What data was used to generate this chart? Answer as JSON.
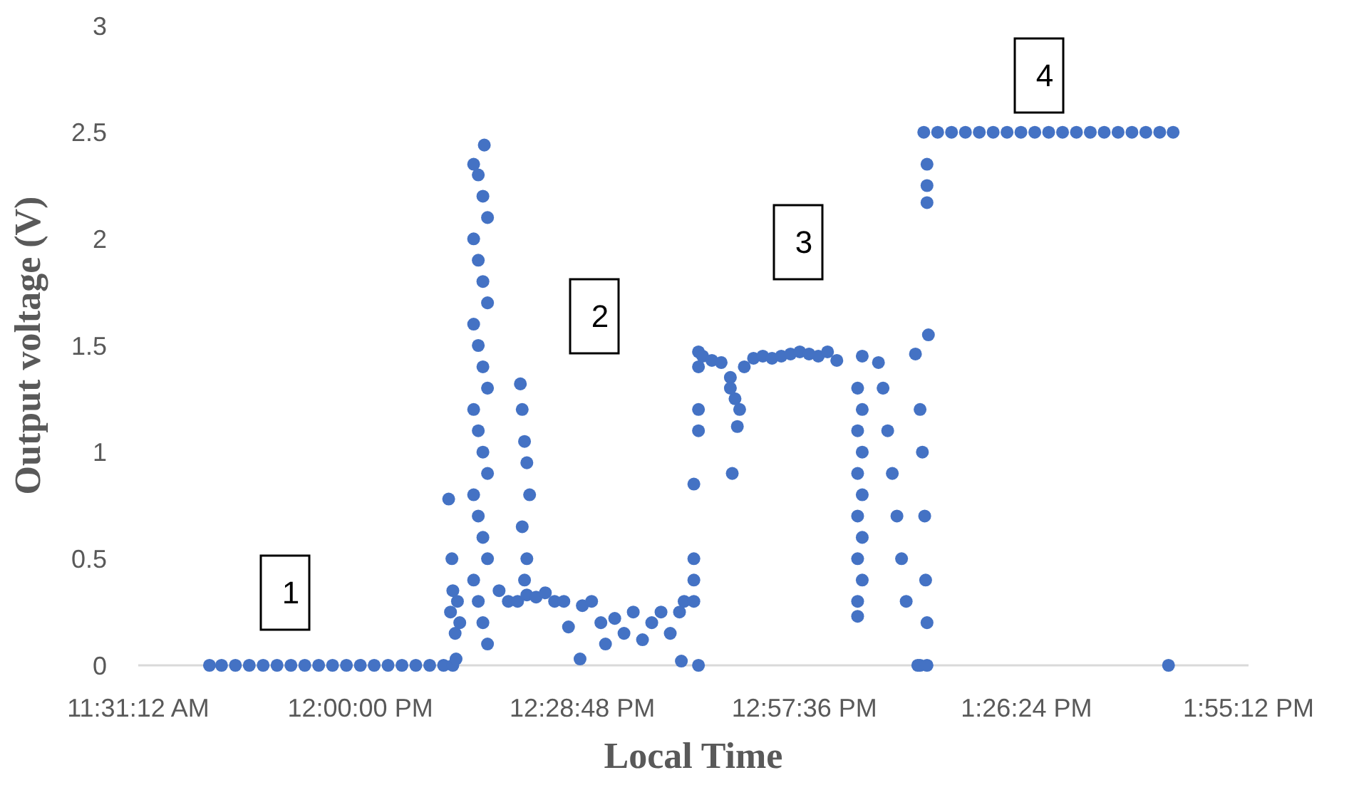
{
  "chart_data": {
    "type": "scatter",
    "xlabel": "Local Time",
    "ylabel": "Output voltage (V)",
    "xlim": [
      11.52,
      13.92
    ],
    "xticks": [
      {
        "value": 11.52,
        "label": "11:31:12 AM"
      },
      {
        "value": 12.0,
        "label": "12:00:00 PM"
      },
      {
        "value": 12.48,
        "label": "12:28:48 PM"
      },
      {
        "value": 12.96,
        "label": "12:57:36 PM"
      },
      {
        "value": 13.44,
        "label": "1:26:24 PM"
      },
      {
        "value": 13.92,
        "label": "1:55:12 PM"
      }
    ],
    "ylim": [
      0,
      3
    ],
    "yticks": [
      0,
      0.5,
      1,
      1.5,
      2,
      2.5,
      3
    ],
    "grid": false,
    "marker": "circle",
    "annotations": [
      "1",
      "2",
      "3",
      "4"
    ],
    "series": [
      {
        "color": "#4472c4",
        "x": [
          11.674,
          11.7,
          11.73,
          11.76,
          11.79,
          11.82,
          11.85,
          11.88,
          11.91,
          11.94,
          11.97,
          12.0,
          12.03,
          12.06,
          12.09,
          12.12,
          12.15,
          12.18,
          12.2,
          12.207,
          12.191,
          12.195,
          12.198,
          12.2,
          12.205,
          12.21,
          12.215,
          12.245,
          12.255,
          12.265,
          12.275,
          12.245,
          12.255,
          12.265,
          12.275,
          12.245,
          12.255,
          12.265,
          12.275,
          12.245,
          12.255,
          12.265,
          12.275,
          12.245,
          12.255,
          12.265,
          12.275,
          12.245,
          12.255,
          12.265,
          12.275,
          12.268,
          12.346,
          12.35,
          12.355,
          12.36,
          12.366,
          12.35,
          12.36,
          12.355,
          12.3,
          12.32,
          12.34,
          12.36,
          12.38,
          12.4,
          12.42,
          12.44,
          12.45,
          12.475,
          12.48,
          12.5,
          12.52,
          12.53,
          12.55,
          12.57,
          12.59,
          12.61,
          12.63,
          12.65,
          12.67,
          12.69,
          12.7,
          12.694,
          12.731,
          12.721,
          12.721,
          12.721,
          12.721,
          12.731,
          12.731,
          12.731,
          12.731,
          12.74,
          12.76,
          12.78,
          12.8,
          12.81,
          12.82,
          12.8,
          12.83,
          12.85,
          12.87,
          12.89,
          12.91,
          12.93,
          12.95,
          12.97,
          12.99,
          12.804,
          12.815,
          13.01,
          13.03,
          13.075,
          13.075,
          13.075,
          13.075,
          13.075,
          13.075,
          13.075,
          13.085,
          13.085,
          13.085,
          13.085,
          13.085,
          13.085,
          13.12,
          13.13,
          13.14,
          13.15,
          13.16,
          13.17,
          13.18,
          13.2,
          13.21,
          13.215,
          13.22,
          13.222,
          13.225,
          13.205,
          13.21,
          13.225,
          13.228,
          13.225,
          13.225,
          13.225,
          13.218,
          13.248,
          13.278,
          13.308,
          13.338,
          13.368,
          13.398,
          13.428,
          13.458,
          13.488,
          13.518,
          13.548,
          13.578,
          13.608,
          13.638,
          13.668,
          13.698,
          13.728,
          13.757,
          13.747
        ],
        "values": [
          0,
          0,
          0,
          0,
          0,
          0,
          0,
          0,
          0,
          0,
          0,
          0,
          0,
          0,
          0,
          0,
          0,
          0,
          0,
          0.03,
          0.78,
          0.25,
          0.5,
          0.35,
          0.15,
          0.3,
          0.2,
          2.35,
          2.3,
          2.2,
          2.1,
          2.0,
          1.9,
          1.8,
          1.7,
          1.6,
          1.5,
          1.4,
          1.3,
          1.2,
          1.1,
          1.0,
          0.9,
          0.8,
          0.7,
          0.6,
          0.5,
          0.4,
          0.3,
          0.2,
          0.1,
          2.44,
          1.32,
          1.2,
          1.05,
          0.95,
          0.8,
          0.65,
          0.5,
          0.4,
          0.35,
          0.3,
          0.3,
          0.33,
          0.32,
          0.34,
          0.3,
          0.3,
          0.18,
          0.03,
          0.28,
          0.3,
          0.2,
          0.1,
          0.22,
          0.15,
          0.25,
          0.12,
          0.2,
          0.25,
          0.15,
          0.25,
          0.3,
          0.02,
          0,
          0.5,
          0.4,
          0.3,
          0.85,
          1.47,
          1.4,
          1.2,
          1.1,
          1.45,
          1.43,
          1.42,
          1.35,
          1.25,
          1.2,
          1.3,
          1.4,
          1.44,
          1.45,
          1.44,
          1.45,
          1.46,
          1.47,
          1.46,
          1.45,
          0.9,
          1.12,
          1.47,
          1.43,
          1.3,
          1.1,
          0.9,
          0.7,
          0.5,
          0.3,
          0.23,
          1.45,
          1.2,
          1.0,
          0.8,
          0.6,
          0.4,
          1.42,
          1.3,
          1.1,
          0.9,
          0.7,
          0.5,
          0.3,
          1.46,
          1.2,
          1.0,
          0.7,
          0.4,
          0.2,
          0,
          0,
          0,
          1.55,
          2.17,
          2.25,
          2.35,
          2.5,
          2.5,
          2.5,
          2.5,
          2.5,
          2.5,
          2.5,
          2.5,
          2.5,
          2.5,
          2.5,
          2.5,
          2.5,
          2.5,
          2.5,
          2.5,
          2.5,
          2.5,
          2.5,
          0
        ]
      }
    ]
  }
}
